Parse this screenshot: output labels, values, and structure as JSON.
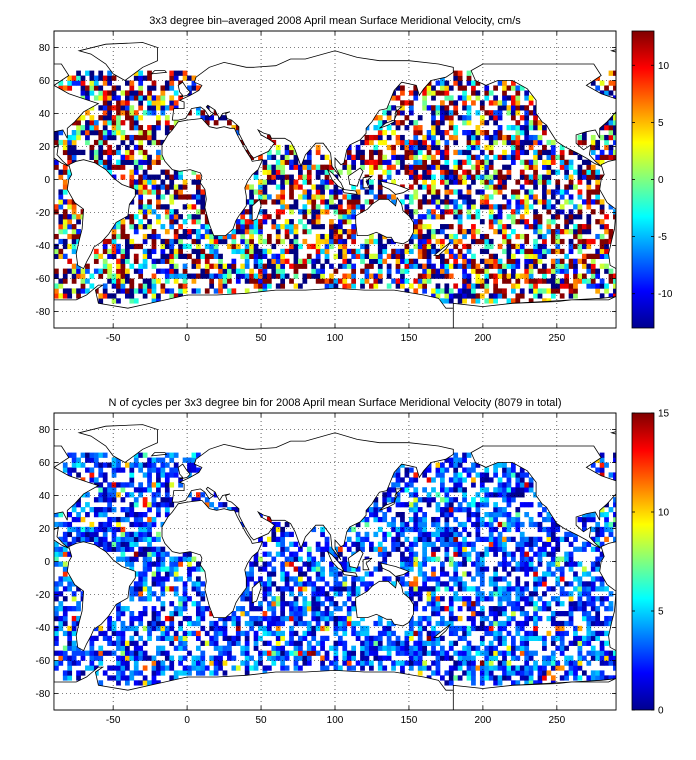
{
  "colors": {
    "ocean": "#ffffff",
    "land": "#ffffff",
    "coast": "#000000"
  },
  "chart_data": [
    {
      "type": "heatmap",
      "title": "3x3 degree bin–averaged 2008 April mean Surface Meridional Velocity, cm/s",
      "xlabel": "",
      "ylabel": "",
      "xlim": [
        -90,
        290
      ],
      "ylim": [
        -90,
        90
      ],
      "x_ticks": [
        "-50",
        "0",
        "50",
        "100",
        "150",
        "200",
        "250"
      ],
      "y_ticks": [
        "80",
        "60",
        "40",
        "20",
        "0",
        "-20",
        "-40",
        "-60",
        "-80"
      ],
      "colorbar": {
        "min": -13,
        "max": 13,
        "ticks": [
          "10",
          "5",
          "0",
          "-5",
          "-10"
        ],
        "colormap": "jet"
      },
      "grid": true,
      "bin_size_deg": 3
    },
    {
      "type": "heatmap",
      "title": "N of cycles per 3x3 degree bin for 2008 April mean Surface Meridional Velocity (8079 in total)",
      "xlabel": "",
      "ylabel": "",
      "xlim": [
        -90,
        290
      ],
      "ylim": [
        -90,
        90
      ],
      "x_ticks": [
        "-50",
        "0",
        "50",
        "100",
        "150",
        "200",
        "250"
      ],
      "y_ticks": [
        "80",
        "60",
        "40",
        "20",
        "0",
        "-20",
        "-40",
        "-60",
        "-80"
      ],
      "colorbar": {
        "min": 0,
        "max": 15,
        "ticks": [
          "15",
          "10",
          "5",
          "0"
        ],
        "colormap": "jet"
      },
      "grid": true,
      "bin_size_deg": 3
    }
  ]
}
